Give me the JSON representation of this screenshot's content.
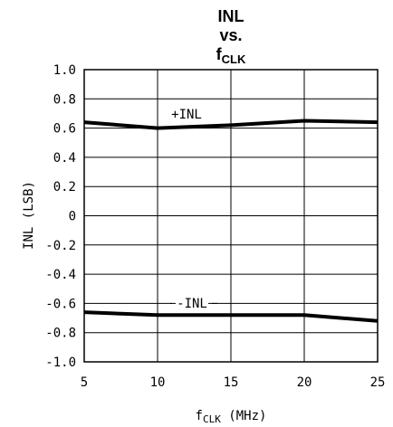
{
  "chart_data": {
    "type": "line",
    "title_lines": [
      "INL",
      "vs."
    ],
    "title_fclk": {
      "main": "f",
      "sub": "CLK"
    },
    "xlabel": {
      "main": "f",
      "sub": "CLK",
      "rest": " (MHz)"
    },
    "ylabel": "INL (LSB)",
    "xlim": [
      5,
      25
    ],
    "ylim": [
      -1.0,
      1.0
    ],
    "x_ticks": [
      5,
      10,
      15,
      20,
      25
    ],
    "y_ticks": [
      1.0,
      0.8,
      0.6,
      0.4,
      0.2,
      0,
      -0.2,
      -0.4,
      -0.6,
      -0.8,
      -1.0
    ],
    "x_tick_labels": [
      "5",
      "10",
      "15",
      "20",
      "25"
    ],
    "y_tick_labels": [
      "1.0",
      "0.8",
      "0.6",
      "0.4",
      "0.2",
      "0",
      "-0.2",
      "-0.4",
      "-0.6",
      "-0.8",
      "-1.0"
    ],
    "grid": true,
    "series": [
      {
        "name": "+INL",
        "x": [
          5,
          10,
          15,
          20,
          25
        ],
        "values": [
          0.64,
          0.6,
          0.62,
          0.65,
          0.64
        ]
      },
      {
        "name": "-INL",
        "x": [
          5,
          10,
          15,
          20,
          25
        ],
        "values": [
          -0.66,
          -0.68,
          -0.68,
          -0.68,
          -0.72
        ]
      }
    ]
  }
}
